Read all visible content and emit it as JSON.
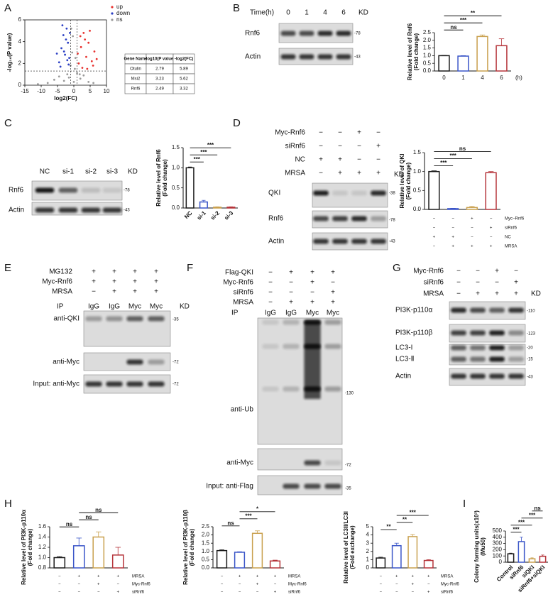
{
  "panel_labels": [
    "A",
    "B",
    "C",
    "D",
    "E",
    "F",
    "G",
    "H",
    "I"
  ],
  "chart_data": [
    {
      "type": "scatter",
      "xlabel": "log2(FC)",
      "ylabel": "-log₁₀(P value)",
      "xlim": [
        -15,
        10
      ],
      "ylim": [
        0,
        6
      ],
      "xticks": [
        -15,
        -10,
        -5,
        0,
        5,
        10
      ],
      "yticks": [
        0,
        2,
        4,
        6
      ],
      "thresholds_x": [
        -1,
        1
      ],
      "threshold_y": 1.3,
      "series": [
        {
          "name": "up",
          "color": "#e8322f",
          "x": [
            1.5,
            2.2,
            3.0,
            3.8,
            4.5,
            5.5,
            6.3,
            2.6,
            3.4,
            4.9,
            1.2,
            5.9,
            2.0,
            7.0,
            4.1
          ],
          "values": [
            2.0,
            3.5,
            4.8,
            2.6,
            3.9,
            2.2,
            3.1,
            1.6,
            4.2,
            5.0,
            2.9,
            1.8,
            4.5,
            2.4,
            1.5
          ]
        },
        {
          "name": "down",
          "color": "#2b3fc4",
          "x": [
            -4.5,
            -3.8,
            -3.2,
            -2.7,
            -2.2,
            -1.8,
            -1.4,
            -4.1,
            -3.0,
            -2.4,
            -1.6,
            -3.5,
            -2.0,
            -5.2,
            -1.2
          ],
          "values": [
            2.1,
            3.4,
            4.6,
            2.8,
            5.2,
            3.9,
            2.5,
            1.7,
            3.1,
            4.2,
            1.9,
            5.5,
            2.3,
            2.9,
            4.8
          ]
        },
        {
          "name": "ns",
          "color": "#9a9a9a",
          "x": [
            -8,
            -6,
            -4.5,
            -3,
            -2,
            -1,
            -0.5,
            0,
            0.5,
            1,
            2,
            3,
            4.5,
            6,
            -11,
            -0.3,
            0.3,
            -1.5,
            1.8,
            -0.8
          ],
          "values": [
            0.2,
            0.5,
            0.8,
            0.4,
            1.0,
            1.8,
            3.0,
            0.3,
            2.5,
            1.1,
            0.6,
            0.9,
            0.3,
            0.2,
            0.1,
            4.5,
            1.5,
            0.7,
            1.0,
            5.2
          ]
        }
      ]
    },
    {
      "type": "bar",
      "ylabel": [
        "Relative  level of Rnf6",
        "(Fold change)"
      ],
      "categories": [
        "0",
        "1",
        "4",
        "6"
      ],
      "xunit": "(h)",
      "values": [
        1.0,
        0.97,
        2.25,
        1.65
      ],
      "errors": [
        0.02,
        0.03,
        0.1,
        0.45
      ],
      "colors": [
        "#1a1a1a",
        "#3a55c8",
        "#c9a04e",
        "#b5343a"
      ],
      "ylim": [
        0,
        2.5
      ],
      "yticks": [
        {
          "value": 0,
          "label": "0.0"
        },
        {
          "value": 0.5,
          "label": "0.5"
        },
        {
          "value": 1,
          "label": "1.0"
        },
        {
          "value": 1.5,
          "label": "1.5"
        },
        {
          "value": 2,
          "label": "2.0"
        },
        {
          "value": 2.5,
          "label": "2.5"
        }
      ],
      "significance": [
        {
          "bars": [
            0,
            1
          ],
          "label": "ns"
        },
        {
          "bars": [
            0,
            2
          ],
          "label": "***"
        },
        {
          "bars": [
            0,
            3
          ],
          "label": "**"
        }
      ]
    },
    {
      "type": "bar",
      "ylabel": [
        "Relative  level of Rnf6",
        "(Fold change)"
      ],
      "categories": [
        "NC",
        "si-1",
        "si-2",
        "si-3"
      ],
      "values": [
        1.0,
        0.15,
        0.02,
        0.02
      ],
      "errors": [
        0.02,
        0.04,
        0.01,
        0.01
      ],
      "colors": [
        "#1a1a1a",
        "#3a55c8",
        "#c9a04e",
        "#b5343a"
      ],
      "ylim": [
        0,
        1.5
      ],
      "yticks": [
        {
          "value": 0,
          "label": "0.0"
        },
        {
          "value": 0.5,
          "label": "0.5"
        },
        {
          "value": 1,
          "label": "1.0"
        },
        {
          "value": 1.5,
          "label": "1.5"
        }
      ],
      "significance": [
        {
          "bars": [
            0,
            1
          ],
          "label": "***"
        },
        {
          "bars": [
            0,
            2
          ],
          "label": "***"
        },
        {
          "bars": [
            0,
            3
          ],
          "label": "***"
        }
      ]
    },
    {
      "type": "bar",
      "ylabel": [
        "Relative level of QKI",
        "(Fold change)"
      ],
      "values": [
        1.0,
        0.02,
        0.05,
        0.97
      ],
      "errors": [
        0.02,
        0.01,
        0.03,
        0.03
      ],
      "colors": [
        "#1a1a1a",
        "#3a55c8",
        "#c9a04e",
        "#b5343a"
      ],
      "ylim": [
        0,
        1.5
      ],
      "yticks": [
        {
          "value": 0,
          "label": "0.0"
        },
        {
          "value": 0.5,
          "label": "0.5"
        },
        {
          "value": 1,
          "label": "1.0"
        },
        {
          "value": 1.5,
          "label": "1.5"
        }
      ],
      "significance": [
        {
          "bars": [
            0,
            1
          ],
          "label": "***"
        },
        {
          "bars": [
            0,
            2
          ],
          "label": "***"
        },
        {
          "bars": [
            0,
            3
          ],
          "label": "ns"
        }
      ],
      "conditions": [
        {
          "name": "Myc−Rnf6",
          "marks": [
            "−",
            "−",
            "+",
            "−"
          ]
        },
        {
          "name": "siRnf6",
          "marks": [
            "−",
            "−",
            "−",
            "+"
          ]
        },
        {
          "name": "NC",
          "marks": [
            "+",
            "+",
            "−",
            "−"
          ]
        },
        {
          "name": "MRSA",
          "marks": [
            "−",
            "+",
            "+",
            "+"
          ]
        }
      ]
    },
    {
      "type": "bar",
      "ylabel": [
        "Relative  level of PI3K-p110α",
        "(Fold change)"
      ],
      "values": [
        1.0,
        1.23,
        1.4,
        1.05
      ],
      "errors": [
        0.02,
        0.15,
        0.1,
        0.15
      ],
      "colors": [
        "#1a1a1a",
        "#3a55c8",
        "#c9a04e",
        "#b5343a"
      ],
      "ylim": [
        0.8,
        1.6
      ],
      "yticks": [
        {
          "value": 0.8,
          "label": "0.8"
        },
        {
          "value": 1,
          "label": "1.0"
        },
        {
          "value": 1.2,
          "label": "1.2"
        },
        {
          "value": 1.4,
          "label": "1.4"
        },
        {
          "value": 1.6,
          "label": "1.6"
        }
      ],
      "significance": [
        {
          "bars": [
            0,
            1
          ],
          "label": "ns"
        },
        {
          "bars": [
            1,
            2
          ],
          "label": "ns"
        },
        {
          "bars": [
            1,
            3
          ],
          "label": "ns"
        }
      ],
      "conditions": [
        {
          "name": "MRSA",
          "marks": [
            "−",
            "+",
            "+",
            "+"
          ]
        },
        {
          "name": "Myc-Rnf6",
          "marks": [
            "−",
            "−",
            "+",
            "−"
          ]
        },
        {
          "name": "siRnf6",
          "marks": [
            "−",
            "−",
            "−",
            "+"
          ]
        }
      ]
    },
    {
      "type": "bar",
      "ylabel": [
        "Relative  level of PI3K-p110β",
        "(Fold change)"
      ],
      "values": [
        1.05,
        0.95,
        2.1,
        0.42
      ],
      "errors": [
        0.05,
        0.03,
        0.15,
        0.05
      ],
      "colors": [
        "#1a1a1a",
        "#3a55c8",
        "#c9a04e",
        "#b5343a"
      ],
      "ylim": [
        0,
        2.5
      ],
      "yticks": [
        {
          "value": 0,
          "label": "0.0"
        },
        {
          "value": 0.5,
          "label": "0.5"
        },
        {
          "value": 1,
          "label": "1.0"
        },
        {
          "value": 1.5,
          "label": "1.5"
        },
        {
          "value": 2,
          "label": "2.0"
        },
        {
          "value": 2.5,
          "label": "2.5"
        }
      ],
      "significance": [
        {
          "bars": [
            0,
            1
          ],
          "label": "ns"
        },
        {
          "bars": [
            1,
            2
          ],
          "label": "***"
        },
        {
          "bars": [
            1,
            3
          ],
          "label": "*"
        }
      ],
      "conditions": [
        {
          "name": "MRSA",
          "marks": [
            "−",
            "+",
            "+",
            "+"
          ]
        },
        {
          "name": "Myc-Rnf6",
          "marks": [
            "−",
            "−",
            "+",
            "−"
          ]
        },
        {
          "name": "siRnf6",
          "marks": [
            "−",
            "−",
            "−",
            "+"
          ]
        }
      ]
    },
    {
      "type": "bar",
      "ylabel": [
        "Relative level of LC3II/LC3I",
        "(Fold exchange)"
      ],
      "values": [
        1.2,
        2.7,
        3.8,
        0.9
      ],
      "errors": [
        0.1,
        0.3,
        0.25,
        0.1
      ],
      "colors": [
        "#1a1a1a",
        "#3a55c8",
        "#c9a04e",
        "#b5343a"
      ],
      "ylim": [
        0,
        5
      ],
      "yticks": [
        0,
        1,
        2,
        3,
        4,
        5
      ],
      "significance": [
        {
          "bars": [
            0,
            1
          ],
          "label": "**"
        },
        {
          "bars": [
            1,
            2
          ],
          "label": "**"
        },
        {
          "bars": [
            1,
            3
          ],
          "label": "***"
        }
      ],
      "conditions": [
        {
          "name": "MRSA",
          "marks": [
            "−",
            "+",
            "+",
            "+"
          ]
        },
        {
          "name": "Myc-Rnf6",
          "marks": [
            "−",
            "−",
            "+",
            "−"
          ]
        },
        {
          "name": "siRnf6",
          "marks": [
            "−",
            "−",
            "−",
            "+"
          ]
        }
      ]
    },
    {
      "type": "bar",
      "ylabel": [
        "Colony forming units(x10³)",
        "(Mu50)"
      ],
      "categories": [
        "Control",
        "siRnf6",
        "siQKI",
        "siRnf6+siQKI"
      ],
      "values": [
        135,
        330,
        55,
        95
      ],
      "errors": [
        10,
        70,
        15,
        20
      ],
      "colors": [
        "#1a1a1a",
        "#3a55c8",
        "#c9a04e",
        "#b5343a"
      ],
      "ylim": [
        0,
        500
      ],
      "yticks": [
        0,
        100,
        200,
        300,
        400,
        500
      ],
      "significance": [
        {
          "bars": [
            0,
            1
          ],
          "label": "***"
        },
        {
          "bars": [
            0,
            2
          ],
          "label": "***"
        },
        {
          "bars": [
            1,
            3
          ],
          "label": "***"
        },
        {
          "bars": [
            2,
            3
          ],
          "label": "ns"
        }
      ]
    }
  ],
  "table": {
    "header": [
      "Gene Name",
      "-log10(P value)",
      "-log2(FC)"
    ],
    "rows": [
      [
        "Otulin",
        2.79,
        5.89
      ],
      [
        "Msi2",
        3.23,
        5.62
      ],
      [
        "Rnf6",
        2.49,
        3.32
      ]
    ]
  },
  "blots": [
    {
      "lanes": {
        "title": "Time(h)",
        "items": [
          "0",
          "1",
          "4",
          "6"
        ]
      },
      "kd": "KD",
      "rows": [
        {
          "names": [
            "Rnf6"
          ],
          "sizes": [
            "-78"
          ]
        },
        {
          "names": [
            "Actin"
          ],
          "sizes": [
            "-43"
          ]
        }
      ]
    },
    {
      "lanes": {
        "items": [
          "NC",
          "si-1",
          "si-2",
          "si-3"
        ]
      },
      "kd": "KD",
      "rows": [
        {
          "names": [
            "Rnf6"
          ],
          "sizes": [
            "-78"
          ]
        },
        {
          "names": [
            "Actin"
          ],
          "sizes": [
            "-43"
          ]
        }
      ]
    },
    {
      "conditions": [
        {
          "name": "Myc-Rnf6",
          "marks": [
            "−",
            "−",
            "+",
            "−"
          ]
        },
        {
          "name": "siRnf6",
          "marks": [
            "−",
            "−",
            "−",
            "+"
          ]
        },
        {
          "name": "NC",
          "marks": [
            "+",
            "+",
            "−",
            "−"
          ]
        },
        {
          "name": "MRSA",
          "marks": [
            "−",
            "+",
            "+",
            "+"
          ]
        }
      ],
      "kd": "KD",
      "rows": [
        {
          "names": [
            "QKI"
          ],
          "sizes": [
            "-38"
          ]
        },
        {
          "names": [
            "Rnf6"
          ],
          "sizes": [
            "-78"
          ]
        },
        {
          "names": [
            "Actin"
          ],
          "sizes": [
            "-43"
          ]
        }
      ]
    },
    {
      "conditions": [
        {
          "name": "MG132",
          "marks": [
            "+",
            "+",
            "+",
            "+"
          ]
        },
        {
          "name": "Myc-Rnf6",
          "marks": [
            "+",
            "+",
            "+",
            "+"
          ]
        },
        {
          "name": "MRSA",
          "marks": [
            "−",
            "+",
            "+",
            "+"
          ]
        }
      ],
      "lanes": {
        "title": "IP",
        "items": [
          "IgG",
          "IgG",
          "Myc",
          "Myc"
        ]
      },
      "kd": "KD",
      "rows": [
        {
          "names": [
            "anti-QKI"
          ],
          "sizes": [
            "-35"
          ]
        },
        {
          "names": [
            "anti-Myc"
          ],
          "sizes": [
            "-72"
          ]
        },
        {
          "names": [
            "Input: anti-Myc"
          ],
          "sizes": [
            "-72"
          ]
        }
      ]
    },
    {
      "conditions": [
        {
          "name": "Flag-QKI",
          "marks": [
            "−",
            "+",
            "+",
            "+"
          ]
        },
        {
          "name": "Myc-Rnf6",
          "marks": [
            "−",
            "−",
            "+",
            "−"
          ]
        },
        {
          "name": "siRnf6",
          "marks": [
            "−",
            "−",
            "−",
            "+"
          ]
        },
        {
          "name": "MRSA",
          "marks": [
            "−",
            "+",
            "+",
            "+"
          ]
        }
      ],
      "lanes": {
        "title": "IP",
        "items": [
          "IgG",
          "IgG",
          "Myc",
          "Myc"
        ]
      },
      "rows": [
        {
          "names": [
            "anti-Ub"
          ],
          "sizes": [
            "-130"
          ]
        },
        {
          "names": [
            "anti-Myc"
          ],
          "sizes": [
            "-72"
          ]
        },
        {
          "names": [
            "Input: anti-Flag"
          ],
          "sizes": [
            "-35"
          ]
        }
      ]
    },
    {
      "conditions": [
        {
          "name": "Myc-Rnf6",
          "marks": [
            "−",
            "−",
            "+",
            "−"
          ]
        },
        {
          "name": "siRnf6",
          "marks": [
            "−",
            "−",
            "−",
            "+"
          ]
        },
        {
          "name": "MRSA",
          "marks": [
            "−",
            "+",
            "+",
            "+"
          ]
        }
      ],
      "kd": "KD",
      "rows": [
        {
          "names": [
            "PI3K-p110α"
          ],
          "sizes": [
            "-110"
          ]
        },
        {
          "names": [
            "PI3K-p110β"
          ],
          "sizes": [
            "-123"
          ]
        },
        {
          "names": [
            "LC3-I",
            "LC3-Ⅱ"
          ],
          "sizes": [
            "-20",
            "-15"
          ]
        },
        {
          "names": [
            "Actin"
          ],
          "sizes": [
            "-43"
          ]
        }
      ]
    }
  ]
}
